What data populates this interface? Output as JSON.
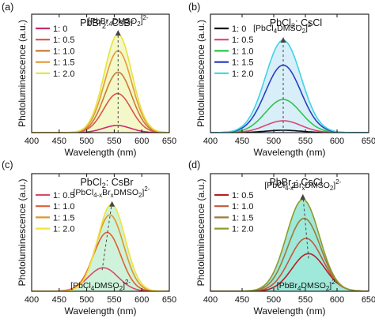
{
  "chart_data": [
    {
      "panel": "(a)",
      "type": "line",
      "title": "PbBr2: CsBr",
      "title_parts": [
        "PbBr",
        "2",
        ": CsBr"
      ],
      "xlabel": "Wavelength (nm)",
      "ylabel": "Photoluminescence (a.u.)",
      "xlim": [
        400,
        650
      ],
      "xticks": [
        400,
        450,
        500,
        550,
        600,
        650
      ],
      "ylim": [
        0,
        1
      ],
      "yticks": "none",
      "legend_position": "top-left",
      "annotation": {
        "parts": [
          [
            "[PbBr",
            ""
          ],
          [
            "4",
            "sub"
          ],
          [
            "DMSO",
            ""
          ],
          [
            "2",
            "sub"
          ],
          [
            "]",
            ""
          ],
          [
            "2-",
            "sup"
          ]
        ],
        "at_x": 557
      },
      "annotation2": null,
      "series": [
        {
          "name": "1: 0",
          "color": "#cc2a6e",
          "peak": 555,
          "width": 25,
          "amplitude": 0.06
        },
        {
          "name": "1: 0.5",
          "color": "#d9534f",
          "peak": 556,
          "width": 25,
          "amplitude": 0.33
        },
        {
          "name": "1: 1.0",
          "color": "#c97a35",
          "peak": 557,
          "width": 25,
          "amplitude": 0.51
        },
        {
          "name": "1: 1.5",
          "color": "#e59a3c",
          "peak": 557,
          "width": 25,
          "amplitude": 0.69
        },
        {
          "name": "1: 2.0",
          "color": "#e8e23a",
          "peak": 557,
          "width": 25,
          "amplitude": 0.83
        }
      ],
      "fill": {
        "color": "#e6ef86",
        "opacity": 0.45
      },
      "dashed_line": {
        "x": [
          557,
          557
        ],
        "y": [
          0,
          0.86
        ]
      }
    },
    {
      "panel": "(b)",
      "type": "line",
      "title": "PbCl2: CsCl",
      "title_parts": [
        "PbCl",
        "2",
        ": CsCl"
      ],
      "xlabel": "Wavelength (nm)",
      "ylabel": "Photoluminescence (a.u.)",
      "xlim": [
        400,
        650
      ],
      "xticks": [
        400,
        450,
        500,
        550,
        600,
        650
      ],
      "ylim": [
        0,
        1
      ],
      "yticks": "none",
      "legend_position": "top-left",
      "annotation": {
        "parts": [
          [
            "[PbCl",
            ""
          ],
          [
            "4",
            "sub"
          ],
          [
            "DMSO",
            ""
          ],
          [
            "2",
            "sub"
          ],
          [
            "]",
            ""
          ],
          [
            "2-",
            "sup"
          ]
        ],
        "at_x": 515
      },
      "annotation2": null,
      "series": [
        {
          "name": "1: 0",
          "color": "#111111",
          "peak": 515,
          "width": 28,
          "amplitude": 0.02
        },
        {
          "name": "1: 0.5",
          "color": "#d84a6a",
          "peak": 515,
          "width": 28,
          "amplitude": 0.1
        },
        {
          "name": "1: 1.0",
          "color": "#2ec54a",
          "peak": 515,
          "width": 28,
          "amplitude": 0.28
        },
        {
          "name": "1: 1.5",
          "color": "#2b3fbf",
          "peak": 515,
          "width": 28,
          "amplitude": 0.57
        },
        {
          "name": "1: 2.0",
          "color": "#3dd4e8",
          "peak": 515,
          "width": 28,
          "amplitude": 0.78
        }
      ],
      "fill": {
        "color": "#a8dcf5",
        "opacity": 0.45
      },
      "dashed_line": {
        "x": [
          515,
          515
        ],
        "y": [
          0,
          0.8
        ]
      }
    },
    {
      "panel": "(c)",
      "type": "line",
      "title": "PbCl2: CsBr",
      "title_parts": [
        "PbCl",
        "2",
        ": CsBr"
      ],
      "xlabel": "Wavelength (nm)",
      "ylabel": "Photoluminescence (a.u.)",
      "xlim": [
        400,
        650
      ],
      "xticks": [
        400,
        450,
        500,
        550,
        600,
        650
      ],
      "ylim": [
        0,
        1
      ],
      "yticks": "none",
      "legend_position": "top-left",
      "annotation": {
        "parts": [
          [
            "[PbCl",
            ""
          ],
          [
            "4-x",
            "sub"
          ],
          [
            "Br",
            ""
          ],
          [
            "x",
            "sub"
          ],
          [
            "DMSO",
            ""
          ],
          [
            "2",
            "sub"
          ],
          [
            "]",
            ""
          ],
          [
            "2-",
            "sup"
          ]
        ],
        "at_x": 545
      },
      "annotation2": {
        "parts": [
          [
            "[PbCl",
            ""
          ],
          [
            "4",
            "sub"
          ],
          [
            "DMSO",
            ""
          ],
          [
            "2",
            "sub"
          ],
          [
            "]",
            ""
          ],
          [
            "2-",
            "sup"
          ]
        ],
        "at_x": 528
      },
      "series": [
        {
          "name": "1: 0.5",
          "color": "#d84a6a",
          "peak": 530,
          "width": 27,
          "amplitude": 0.2
        },
        {
          "name": "1: 1.0",
          "color": "#e06030",
          "peak": 537,
          "width": 25,
          "amplitude": 0.5
        },
        {
          "name": "1: 1.5",
          "color": "#e0962c",
          "peak": 542,
          "width": 25,
          "amplitude": 0.65
        },
        {
          "name": "1: 2.0",
          "color": "#f2e23c",
          "peak": 545,
          "width": 25,
          "amplitude": 0.74
        }
      ],
      "fill": {
        "color": "#9fe8b6",
        "opacity": 0.5
      },
      "dashed_line": {
        "x": [
          528,
          546
        ],
        "y": [
          0.18,
          0.76
        ]
      }
    },
    {
      "panel": "(d)",
      "type": "line",
      "title": "PbBr2: CsCl",
      "title_parts": [
        "PbBr",
        "2",
        ": CsCl"
      ],
      "xlabel": "Wavelength (nm)",
      "ylabel": "Photoluminescence (a.u.)",
      "xlim": [
        400,
        650
      ],
      "xticks": [
        400,
        450,
        500,
        550,
        600,
        650
      ],
      "ylim": [
        0,
        1
      ],
      "yticks": "none",
      "legend_position": "top-left",
      "annotation": {
        "parts": [
          [
            "[PbCl",
            ""
          ],
          [
            "4-x",
            "sub"
          ],
          [
            "Br",
            ""
          ],
          [
            "x",
            "sub"
          ],
          [
            "DMSO",
            ""
          ],
          [
            "2",
            "sub"
          ],
          [
            "]",
            ""
          ],
          [
            "2-",
            "sup"
          ]
        ],
        "at_x": 546
      },
      "annotation2": {
        "parts": [
          [
            "[PbBr",
            ""
          ],
          [
            "4",
            "sub"
          ],
          [
            "DMSO",
            ""
          ],
          [
            "2",
            "sub"
          ],
          [
            "]",
            ""
          ],
          [
            "2-",
            "sup"
          ]
        ],
        "at_x": 555
      },
      "series": [
        {
          "name": "1: 0.5",
          "color": "#b5202a",
          "peak": 555,
          "width": 26,
          "amplitude": 0.32
        },
        {
          "name": "1: 1.0",
          "color": "#c05a3a",
          "peak": 551,
          "width": 26,
          "amplitude": 0.45
        },
        {
          "name": "1: 1.5",
          "color": "#9e7a3a",
          "peak": 548,
          "width": 26,
          "amplitude": 0.62
        },
        {
          "name": "1: 2.0",
          "color": "#8f9a2a",
          "peak": 546,
          "width": 26,
          "amplitude": 0.78
        }
      ],
      "fill": {
        "color": "#3fd3b6",
        "opacity": 0.5
      },
      "dashed_line": {
        "x": [
          555,
          546
        ],
        "y": [
          0.28,
          0.82
        ]
      }
    }
  ]
}
